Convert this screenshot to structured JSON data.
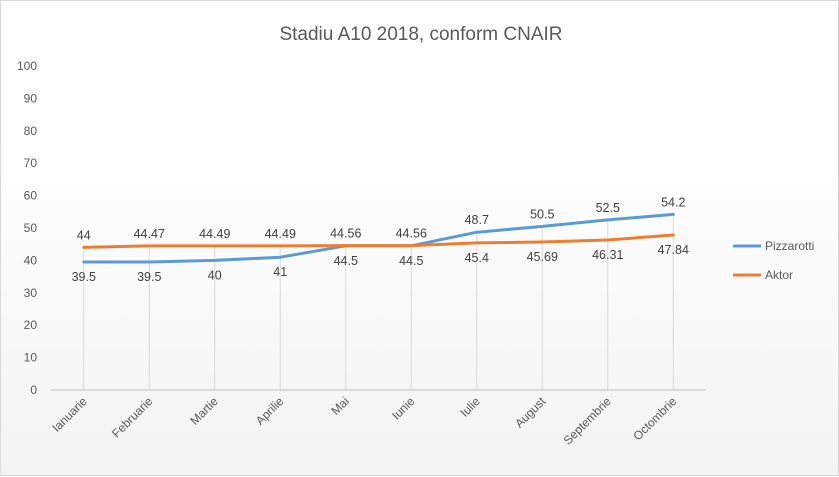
{
  "chart_data": {
    "type": "line",
    "title": "Stadiu A10 2018, conform CNAIR",
    "categories": [
      "Ianuarie",
      "Februarie",
      "Martie",
      "Aprilie",
      "Mai",
      "Iunie",
      "Iulie",
      "August",
      "Septembrie",
      "Octombrie"
    ],
    "ylim": [
      0,
      100
    ],
    "yticks": [
      "0",
      "10",
      "20",
      "30",
      "40",
      "50",
      "60",
      "70",
      "80",
      "90",
      "100"
    ],
    "grid": false,
    "drop_lines": true,
    "legend": "right",
    "series": [
      {
        "name": "Pizzarotti",
        "color": "#5b9bd5",
        "values": [
          39.5,
          39.5,
          40,
          41,
          44.5,
          44.5,
          48.7,
          50.5,
          52.5,
          54.2
        ],
        "labels": [
          "39.5",
          "39.5",
          "40",
          "41",
          "44.5",
          "44.5",
          "48.7",
          "50.5",
          "52.5",
          "54.2"
        ]
      },
      {
        "name": "Aktor",
        "color": "#ed7d31",
        "values": [
          44,
          44.47,
          44.49,
          44.49,
          44.56,
          44.56,
          45.4,
          45.69,
          46.31,
          47.84
        ],
        "labels": [
          "44",
          "44.47",
          "44.49",
          "44.49",
          "44.56",
          "44.56",
          "45.4",
          "45.69",
          "46.31",
          "47.84"
        ]
      }
    ]
  }
}
